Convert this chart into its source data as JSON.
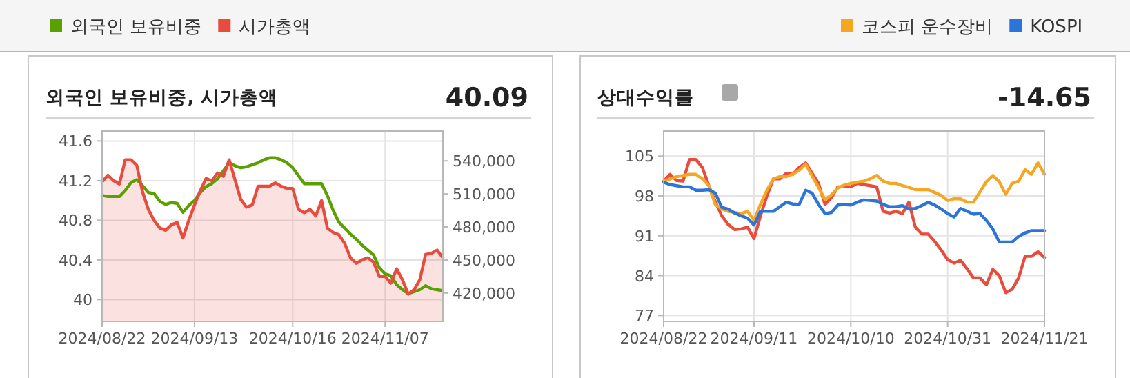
{
  "chart_data": [
    {
      "type": "line",
      "title": "외국인 보유비중, 시가총액",
      "annotations": [
        "40.09"
      ],
      "legend": "top left",
      "grid": true,
      "categories": [
        "2024/08/22",
        null,
        null,
        null,
        null,
        null,
        null,
        null,
        null,
        null,
        null,
        null,
        null,
        null,
        null,
        null,
        "2024/09/13",
        null,
        null,
        null,
        null,
        null,
        null,
        null,
        null,
        null,
        null,
        null,
        null,
        null,
        null,
        null,
        null,
        "2024/10/16",
        null,
        null,
        null,
        null,
        null,
        null,
        null,
        null,
        null,
        null,
        null,
        null,
        null,
        null,
        null,
        "2024/11/07",
        null,
        null,
        null,
        null,
        null,
        null,
        null,
        null,
        null,
        null
      ],
      "ylim": [
        39.78,
        41.7
      ],
      "yticks": [
        40,
        40.4,
        40.8,
        41.2,
        41.6
      ],
      "y2lim": [
        394200,
        567100
      ],
      "y2ticks": [
        {
          "value": 420000,
          "label": "420,000"
        },
        {
          "value": 450000,
          "label": "450,000"
        },
        {
          "value": 480000,
          "label": "480,000"
        },
        {
          "value": 510000,
          "label": "510,000"
        },
        {
          "value": 540000,
          "label": "540,000"
        }
      ],
      "series": [
        {
          "name": "외국인 보유비중",
          "color": "#5aa000",
          "type": "line",
          "values": [
            41.05,
            41.04,
            41.04,
            41.04,
            41.1,
            41.18,
            41.21,
            41.15,
            41.08,
            41.07,
            40.99,
            40.96,
            40.98,
            40.97,
            40.88,
            40.95,
            41.0,
            41.08,
            41.14,
            41.17,
            41.22,
            41.3,
            41.38,
            41.35,
            41.33,
            41.34,
            41.36,
            41.38,
            41.41,
            41.43,
            41.43,
            41.41,
            41.38,
            41.33,
            41.25,
            41.17,
            41.17,
            41.17,
            41.17,
            41.05,
            40.9,
            40.78,
            40.72,
            40.66,
            40.61,
            40.55,
            40.5,
            40.45,
            40.32,
            40.26,
            40.24,
            40.15,
            40.1,
            40.06,
            40.08,
            40.1,
            40.14,
            40.11,
            40.1,
            40.09
          ]
        },
        {
          "name": "시가총액",
          "color": "#e84c3d",
          "type": "area",
          "axis": "y2",
          "values": [
            521000,
            527000,
            522000,
            519000,
            541000,
            541000,
            536000,
            512000,
            496000,
            486000,
            479000,
            477000,
            482000,
            484000,
            470000,
            486000,
            500000,
            513000,
            524000,
            522000,
            529000,
            526000,
            541000,
            523000,
            505000,
            498000,
            500000,
            517000,
            517000,
            517000,
            520000,
            517000,
            515000,
            515000,
            496000,
            493000,
            496000,
            490000,
            504000,
            479000,
            475000,
            473000,
            465000,
            452000,
            447000,
            450000,
            452000,
            448000,
            435000,
            435000,
            429000,
            442000,
            432000,
            419000,
            423000,
            432000,
            455000,
            456000,
            459000,
            452000
          ]
        }
      ]
    },
    {
      "type": "line",
      "title": "상대수익률",
      "annotations": [
        "-14.65"
      ],
      "legend": "top right",
      "grid": true,
      "categories": [
        "2024/08/22",
        null,
        null,
        null,
        null,
        null,
        null,
        null,
        null,
        null,
        null,
        null,
        null,
        null,
        "2024/09/11",
        null,
        null,
        null,
        null,
        null,
        null,
        null,
        null,
        null,
        null,
        null,
        null,
        null,
        null,
        "2024/10/10",
        null,
        null,
        null,
        null,
        null,
        null,
        null,
        null,
        null,
        null,
        null,
        null,
        null,
        null,
        "2024/10/31",
        null,
        null,
        null,
        null,
        null,
        null,
        null,
        null,
        null,
        null,
        null,
        null,
        null,
        null,
        "2024/11/21"
      ],
      "ylim": [
        75.95,
        109.4
      ],
      "yticks": [
        77,
        84,
        91,
        98,
        105
      ],
      "series": [
        {
          "color": "#e84c3d",
          "type": "line",
          "values": [
            100.6,
            101.8,
            100.7,
            100.6,
            104.4,
            104.4,
            103.0,
            99.8,
            97.0,
            94.5,
            93.0,
            92.1,
            92.2,
            92.5,
            90.5,
            94.5,
            98.0,
            101.0,
            101.0,
            102.0,
            101.8,
            103.0,
            103.8,
            102.0,
            100.2,
            96.5,
            97.7,
            99.6,
            99.6,
            99.6,
            100.2,
            100.0,
            99.8,
            99.6,
            95.3,
            95.0,
            95.3,
            94.9,
            96.9,
            92.5,
            91.3,
            91.3,
            90.0,
            88.5,
            86.8,
            86.2,
            86.7,
            85.2,
            83.6,
            83.6,
            82.4,
            85.1,
            84.0,
            81.0,
            81.6,
            83.6,
            87.4,
            87.4,
            88.2,
            87.2
          ]
        },
        {
          "name": "코스피 운수장비",
          "color": "#f5a623",
          "type": "line",
          "values": [
            100.6,
            101.0,
            101.4,
            101.6,
            101.8,
            101.8,
            101.0,
            99.8,
            96.5,
            95.7,
            95.3,
            95.1,
            94.9,
            95.3,
            93.7,
            96.5,
            99.0,
            101.0,
            101.4,
            101.4,
            101.8,
            102.5,
            103.6,
            101.5,
            99.5,
            97.3,
            98.2,
            99.4,
            99.9,
            100.2,
            100.4,
            100.6,
            101.0,
            101.6,
            100.6,
            100.2,
            100.2,
            99.8,
            99.5,
            99.1,
            99.1,
            99.1,
            98.6,
            98.1,
            97.2,
            97.5,
            97.5,
            96.9,
            96.9,
            98.7,
            100.5,
            101.6,
            100.5,
            98.3,
            100.2,
            100.6,
            102.6,
            101.8,
            103.8,
            101.8
          ]
        },
        {
          "name": "KOSPI",
          "color": "#2b74d8",
          "type": "line",
          "values": [
            100.4,
            100.0,
            99.8,
            99.6,
            99.6,
            99.0,
            99.0,
            99.1,
            98.5,
            96.0,
            95.7,
            95.0,
            94.5,
            94.1,
            92.9,
            95.3,
            95.3,
            95.3,
            96.1,
            96.9,
            96.6,
            96.5,
            99.0,
            98.5,
            96.5,
            94.9,
            95.1,
            96.4,
            96.5,
            96.4,
            96.9,
            97.3,
            97.2,
            97.1,
            96.5,
            96.1,
            96.1,
            96.3,
            95.7,
            95.8,
            96.3,
            96.9,
            96.4,
            95.7,
            94.9,
            94.3,
            95.8,
            95.3,
            94.8,
            94.9,
            93.7,
            92.2,
            89.9,
            89.9,
            89.9,
            90.9,
            91.5,
            91.9,
            91.9,
            91.9
          ]
        }
      ]
    }
  ]
}
